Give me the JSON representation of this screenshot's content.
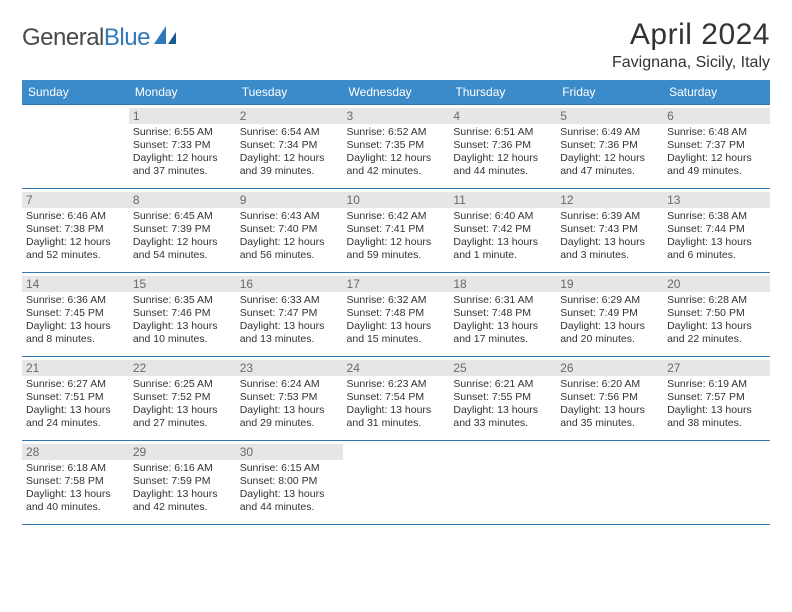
{
  "logo": {
    "part1": "General",
    "part2": "Blue"
  },
  "title": "April 2024",
  "location": "Favignana, Sicily, Italy",
  "weekdays": [
    "Sunday",
    "Monday",
    "Tuesday",
    "Wednesday",
    "Thursday",
    "Friday",
    "Saturday"
  ],
  "colors": {
    "header_bg": "#3b8bca",
    "header_text": "#ffffff",
    "border": "#2f79b9",
    "daynum_bg": "#e6e6e6",
    "daynum_text": "#6a6a6a",
    "body_text": "#333333",
    "logo_gray": "#4a4a4a",
    "logo_blue": "#2f79b9"
  },
  "grid": [
    [
      null,
      {
        "n": "1",
        "sr": "6:55 AM",
        "ss": "7:33 PM",
        "dl": "12 hours and 37 minutes."
      },
      {
        "n": "2",
        "sr": "6:54 AM",
        "ss": "7:34 PM",
        "dl": "12 hours and 39 minutes."
      },
      {
        "n": "3",
        "sr": "6:52 AM",
        "ss": "7:35 PM",
        "dl": "12 hours and 42 minutes."
      },
      {
        "n": "4",
        "sr": "6:51 AM",
        "ss": "7:36 PM",
        "dl": "12 hours and 44 minutes."
      },
      {
        "n": "5",
        "sr": "6:49 AM",
        "ss": "7:36 PM",
        "dl": "12 hours and 47 minutes."
      },
      {
        "n": "6",
        "sr": "6:48 AM",
        "ss": "7:37 PM",
        "dl": "12 hours and 49 minutes."
      }
    ],
    [
      {
        "n": "7",
        "sr": "6:46 AM",
        "ss": "7:38 PM",
        "dl": "12 hours and 52 minutes."
      },
      {
        "n": "8",
        "sr": "6:45 AM",
        "ss": "7:39 PM",
        "dl": "12 hours and 54 minutes."
      },
      {
        "n": "9",
        "sr": "6:43 AM",
        "ss": "7:40 PM",
        "dl": "12 hours and 56 minutes."
      },
      {
        "n": "10",
        "sr": "6:42 AM",
        "ss": "7:41 PM",
        "dl": "12 hours and 59 minutes."
      },
      {
        "n": "11",
        "sr": "6:40 AM",
        "ss": "7:42 PM",
        "dl": "13 hours and 1 minute."
      },
      {
        "n": "12",
        "sr": "6:39 AM",
        "ss": "7:43 PM",
        "dl": "13 hours and 3 minutes."
      },
      {
        "n": "13",
        "sr": "6:38 AM",
        "ss": "7:44 PM",
        "dl": "13 hours and 6 minutes."
      }
    ],
    [
      {
        "n": "14",
        "sr": "6:36 AM",
        "ss": "7:45 PM",
        "dl": "13 hours and 8 minutes."
      },
      {
        "n": "15",
        "sr": "6:35 AM",
        "ss": "7:46 PM",
        "dl": "13 hours and 10 minutes."
      },
      {
        "n": "16",
        "sr": "6:33 AM",
        "ss": "7:47 PM",
        "dl": "13 hours and 13 minutes."
      },
      {
        "n": "17",
        "sr": "6:32 AM",
        "ss": "7:48 PM",
        "dl": "13 hours and 15 minutes."
      },
      {
        "n": "18",
        "sr": "6:31 AM",
        "ss": "7:48 PM",
        "dl": "13 hours and 17 minutes."
      },
      {
        "n": "19",
        "sr": "6:29 AM",
        "ss": "7:49 PM",
        "dl": "13 hours and 20 minutes."
      },
      {
        "n": "20",
        "sr": "6:28 AM",
        "ss": "7:50 PM",
        "dl": "13 hours and 22 minutes."
      }
    ],
    [
      {
        "n": "21",
        "sr": "6:27 AM",
        "ss": "7:51 PM",
        "dl": "13 hours and 24 minutes."
      },
      {
        "n": "22",
        "sr": "6:25 AM",
        "ss": "7:52 PM",
        "dl": "13 hours and 27 minutes."
      },
      {
        "n": "23",
        "sr": "6:24 AM",
        "ss": "7:53 PM",
        "dl": "13 hours and 29 minutes."
      },
      {
        "n": "24",
        "sr": "6:23 AM",
        "ss": "7:54 PM",
        "dl": "13 hours and 31 minutes."
      },
      {
        "n": "25",
        "sr": "6:21 AM",
        "ss": "7:55 PM",
        "dl": "13 hours and 33 minutes."
      },
      {
        "n": "26",
        "sr": "6:20 AM",
        "ss": "7:56 PM",
        "dl": "13 hours and 35 minutes."
      },
      {
        "n": "27",
        "sr": "6:19 AM",
        "ss": "7:57 PM",
        "dl": "13 hours and 38 minutes."
      }
    ],
    [
      {
        "n": "28",
        "sr": "6:18 AM",
        "ss": "7:58 PM",
        "dl": "13 hours and 40 minutes."
      },
      {
        "n": "29",
        "sr": "6:16 AM",
        "ss": "7:59 PM",
        "dl": "13 hours and 42 minutes."
      },
      {
        "n": "30",
        "sr": "6:15 AM",
        "ss": "8:00 PM",
        "dl": "13 hours and 44 minutes."
      },
      null,
      null,
      null,
      null
    ]
  ],
  "labels": {
    "sunrise": "Sunrise:",
    "sunset": "Sunset:",
    "daylight": "Daylight:"
  }
}
